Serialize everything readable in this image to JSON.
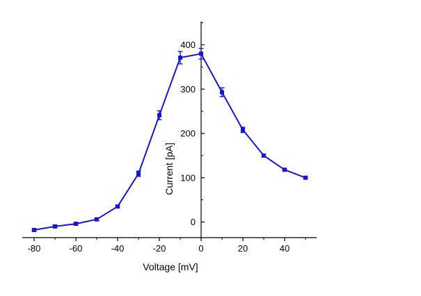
{
  "chart_data": {
    "type": "line",
    "title": "",
    "xlabel": "Voltage [mV]",
    "ylabel": "Current [pA]",
    "xlim": [
      -85,
      55
    ],
    "ylim": [
      -40,
      450
    ],
    "xticks": [
      -80,
      -60,
      -40,
      -20,
      0,
      20,
      40
    ],
    "xtick_labels": [
      "-80",
      "-60",
      "-40",
      "-20",
      "0",
      "20",
      "40"
    ],
    "yticks": [
      0,
      100,
      200,
      300,
      400
    ],
    "ytick_labels": [
      "0",
      "100",
      "200",
      "300",
      "400"
    ],
    "grid": false,
    "legend": "none",
    "series": [
      {
        "name": "Current",
        "color": "#1515d6",
        "x": [
          -80,
          -70,
          -60,
          -50,
          -40,
          -30,
          -20,
          -10,
          0,
          10,
          20,
          30,
          40,
          50
        ],
        "y": [
          -18,
          -10,
          -4,
          6,
          35,
          109,
          241,
          371,
          380,
          293,
          208,
          150,
          118,
          100
        ],
        "error": [
          3,
          3,
          3,
          3,
          3,
          6,
          10,
          14,
          12,
          10,
          6,
          3,
          2,
          2
        ]
      }
    ]
  }
}
